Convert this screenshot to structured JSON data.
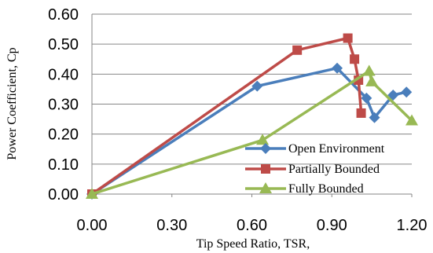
{
  "chart_data": {
    "type": "line",
    "title": "",
    "xlabel": "Tip Speed Ratio, TSR,",
    "ylabel": "Power Coefficient, Cp",
    "xlim": [
      0,
      1.2
    ],
    "ylim": [
      0,
      0.6
    ],
    "x_ticks": [
      "0.00",
      "0.30",
      "0.60",
      "0.90",
      "1.20"
    ],
    "y_ticks": [
      "0.00",
      "0.10",
      "0.20",
      "0.30",
      "0.40",
      "0.50",
      "0.60"
    ],
    "grid": "horizontal",
    "legend_position": "bottom-right",
    "series": [
      {
        "name": "Open Environment",
        "color": "#4a7ebb",
        "marker": "diamond",
        "points": [
          [
            0.0,
            0.0
          ],
          [
            0.62,
            0.36
          ],
          [
            0.92,
            0.42
          ],
          [
            1.03,
            0.32
          ],
          [
            1.06,
            0.255
          ],
          [
            1.13,
            0.33
          ],
          [
            1.18,
            0.34
          ]
        ]
      },
      {
        "name": "Partially Bounded",
        "color": "#be4b48",
        "marker": "square",
        "points": [
          [
            0.0,
            0.0
          ],
          [
            0.77,
            0.48
          ],
          [
            0.96,
            0.52
          ],
          [
            0.985,
            0.45
          ],
          [
            1.0,
            0.38
          ],
          [
            1.01,
            0.27
          ]
        ]
      },
      {
        "name": "Fully Bounded",
        "color": "#98b954",
        "marker": "triangle",
        "points": [
          [
            0.0,
            0.0
          ],
          [
            0.64,
            0.18
          ],
          [
            1.04,
            0.41
          ],
          [
            1.05,
            0.375
          ],
          [
            1.2,
            0.245
          ]
        ]
      }
    ]
  }
}
